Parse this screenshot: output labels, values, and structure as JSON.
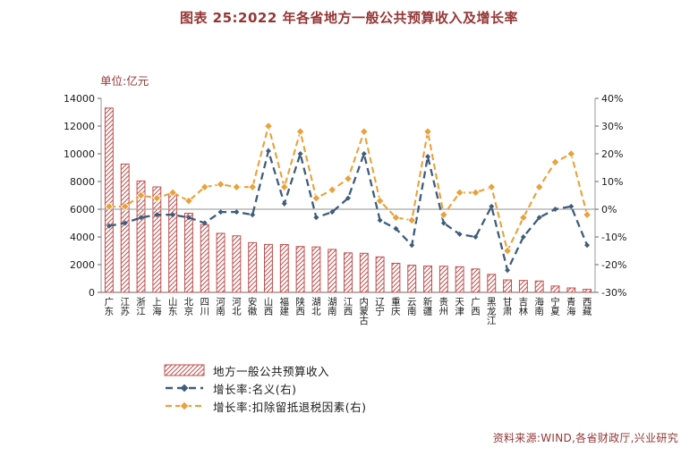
{
  "page": {
    "source": "资料来源:WIND,各省财政厅,兴业研究"
  },
  "colors": {
    "bar": "#C0504D",
    "nominal_line": "#3F5D7B",
    "adjusted_line": "#E9A13B",
    "zero_line": "#A6A6A6",
    "axis": "#9a9a9a",
    "tick_text": "#1a1a1a",
    "accent_red": "#943634"
  },
  "chart_data": {
    "type": "bar+line",
    "title": "图表 25:2022 年各省地方一般公共预算收入及增长率",
    "unit": "单位:亿元",
    "categories": [
      "广东",
      "江苏",
      "浙江",
      "上海",
      "山东",
      "北京",
      "四川",
      "河南",
      "河北",
      "安徽",
      "山西",
      "福建",
      "陕西",
      "湖北",
      "湖南",
      "江西",
      "内蒙古",
      "辽宁",
      "重庆",
      "云南",
      "新疆",
      "贵州",
      "天津",
      "广西",
      "黑龙江",
      "甘肃",
      "吉林",
      "海南",
      "宁夏",
      "青海",
      "西藏"
    ],
    "bar_series": {
      "name": "地方一般公共预算收入",
      "axis": "left",
      "values": [
        13300,
        9260,
        8040,
        7610,
        7100,
        5710,
        4880,
        4260,
        4080,
        3590,
        3460,
        3450,
        3310,
        3280,
        3100,
        2850,
        2820,
        2560,
        2100,
        1960,
        1900,
        1890,
        1850,
        1690,
        1300,
        900,
        860,
        820,
        460,
        320,
        220
      ]
    },
    "line_series": [
      {
        "name": "增长率:名义(右)",
        "axis": "right",
        "values": [
          -6,
          -5,
          -3,
          -2,
          -2,
          -3,
          -5,
          -1,
          -1,
          -2,
          21,
          2,
          20,
          -3,
          -1,
          4,
          20,
          -4,
          -7,
          -13,
          19,
          -5,
          -9,
          -10,
          1,
          -22,
          -10,
          -3,
          0,
          1,
          -13
        ]
      },
      {
        "name": "增长率:扣除留抵退税因素(右)",
        "axis": "right",
        "values": [
          1,
          1,
          5,
          4,
          6,
          3,
          8,
          9,
          8,
          8,
          30,
          8,
          28,
          4,
          7,
          11,
          28,
          3,
          -3,
          -4,
          28,
          -2,
          6,
          6,
          8,
          -15,
          -3,
          8,
          17,
          20,
          -2
        ]
      }
    ],
    "left_axis": {
      "min": 0,
      "max": 14000,
      "step": 2000
    },
    "right_axis": {
      "min": -30,
      "max": 40,
      "step": 10,
      "format": "percent"
    },
    "grid": "zero-line-only",
    "legend_position": "bottom-left"
  }
}
